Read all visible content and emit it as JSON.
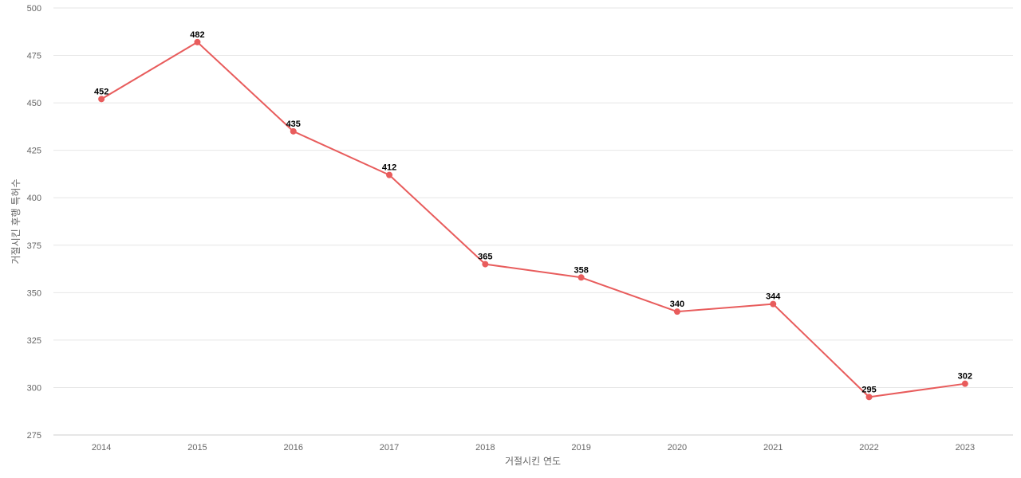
{
  "chart_data": {
    "type": "line",
    "title": "",
    "xlabel": "거절시킨 연도",
    "ylabel": "거절시킨 후행 특허수",
    "ylim": [
      275,
      500
    ],
    "yticks": [
      275,
      300,
      325,
      350,
      375,
      400,
      425,
      450,
      475,
      500
    ],
    "categories": [
      "2014",
      "2015",
      "2016",
      "2017",
      "2018",
      "2019",
      "2020",
      "2021",
      "2022",
      "2023"
    ],
    "series": [
      {
        "values": [
          452,
          482,
          435,
          412,
          365,
          358,
          340,
          344,
          295,
          302
        ],
        "color": "#e85c5c"
      }
    ],
    "grid": true,
    "legend": "none",
    "data_labels": true
  }
}
